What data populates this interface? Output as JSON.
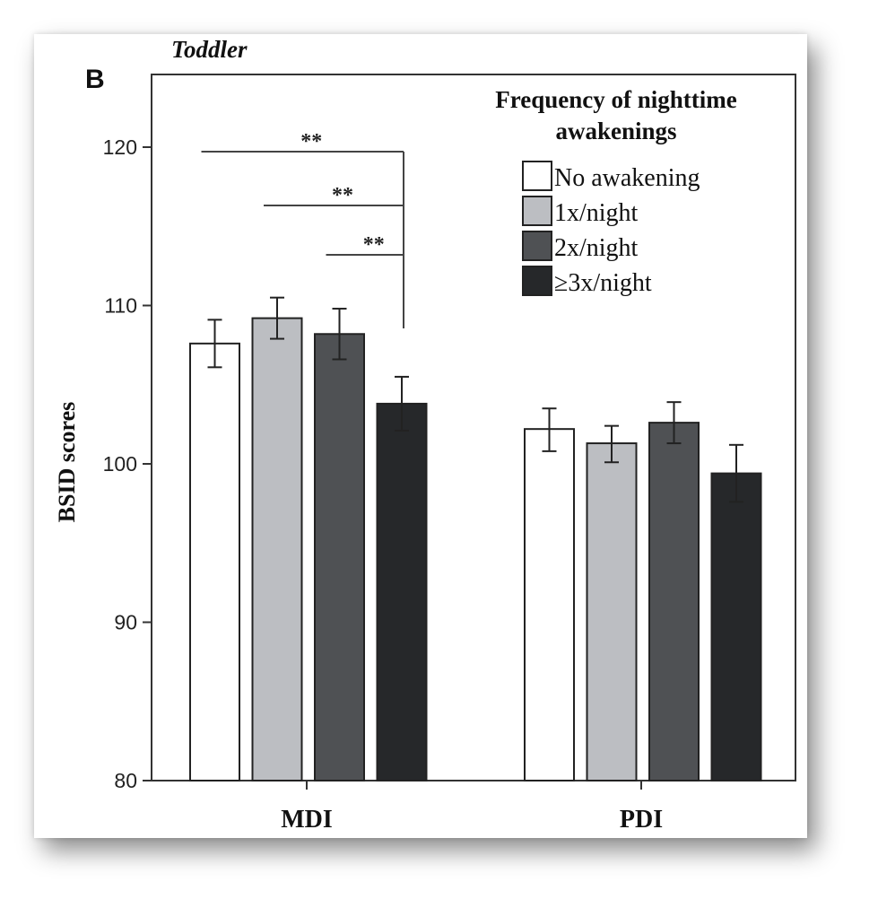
{
  "figure": {
    "panel_label": "B",
    "subtitle": "Toddler"
  },
  "chart_data": {
    "type": "bar",
    "title": "",
    "subtitle": "Toddler",
    "ylabel": "BSID scores",
    "xlabel": "",
    "ylim": [
      80,
      125
    ],
    "yticks": [
      80,
      90,
      100,
      110,
      120
    ],
    "categories": [
      "MDI",
      "PDI"
    ],
    "legend": {
      "title": "Frequency of nighttime awakenings",
      "title_lines": [
        "Frequency of nighttime",
        "awakenings"
      ],
      "position": "top-right"
    },
    "series": [
      {
        "name": "No awakening",
        "color": "#ffffff",
        "values": [
          107.6,
          102.2
        ],
        "err_low": [
          106.1,
          100.8
        ],
        "err_high": [
          109.1,
          103.5
        ]
      },
      {
        "name": "1x/night",
        "color": "#bcbec2",
        "values": [
          109.2,
          101.3
        ],
        "err_low": [
          107.9,
          100.1
        ],
        "err_high": [
          110.5,
          102.4
        ]
      },
      {
        "name": "2x/night",
        "color": "#4f5154",
        "values": [
          108.2,
          102.6
        ],
        "err_low": [
          106.6,
          101.3
        ],
        "err_high": [
          109.8,
          103.9
        ]
      },
      {
        "name": "≥3x/night",
        "color": "#26282a",
        "values": [
          103.8,
          99.4
        ],
        "err_low": [
          102.1,
          97.6
        ],
        "err_high": [
          105.5,
          101.2
        ]
      }
    ],
    "significance": [
      {
        "category": "MDI",
        "from_series": 0,
        "to_series": 3,
        "label": "**"
      },
      {
        "category": "MDI",
        "from_series": 1,
        "to_series": 3,
        "label": "**"
      },
      {
        "category": "MDI",
        "from_series": 2,
        "to_series": 3,
        "label": "**"
      }
    ]
  }
}
